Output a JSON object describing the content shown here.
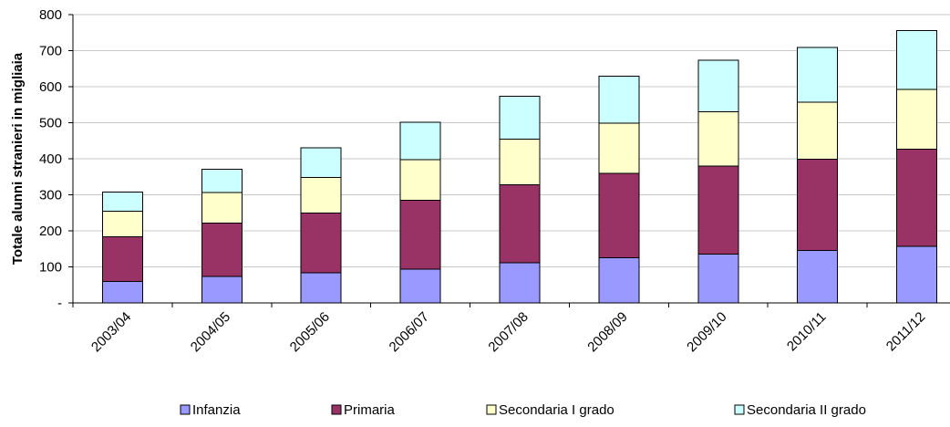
{
  "chart_data": {
    "type": "bar",
    "stacked": true,
    "title": "",
    "xlabel": "",
    "ylabel": "Totale alunni stranieri in migliaia",
    "ylim": [
      0,
      800
    ],
    "yticks": [
      0,
      100,
      200,
      300,
      400,
      500,
      600,
      700,
      800
    ],
    "ytick_labels": [
      "-",
      "100",
      "200",
      "300",
      "400",
      "500",
      "600",
      "700",
      "800"
    ],
    "grid": true,
    "legend_position": "bottom",
    "categories": [
      "2003/04",
      "2004/05",
      "2005/06",
      "2006/07",
      "2007/08",
      "2008/09",
      "2009/10",
      "2010/11",
      "2011/12"
    ],
    "series": [
      {
        "name": "Infanzia",
        "color": "#9999ff",
        "values": [
          59,
          74,
          84,
          94,
          111,
          125,
          135,
          145,
          157
        ]
      },
      {
        "name": "Primaria",
        "color": "#993366",
        "values": [
          124,
          147,
          166,
          191,
          217,
          234,
          245,
          254,
          269
        ]
      },
      {
        "name": "Secondaria I grado",
        "color": "#ffffcc",
        "values": [
          71,
          85,
          98,
          113,
          126,
          140,
          151,
          158,
          166
        ]
      },
      {
        "name": "Secondaria II grado",
        "color": "#ccffff",
        "values": [
          53,
          65,
          83,
          103,
          120,
          130,
          142,
          152,
          164
        ]
      }
    ]
  }
}
